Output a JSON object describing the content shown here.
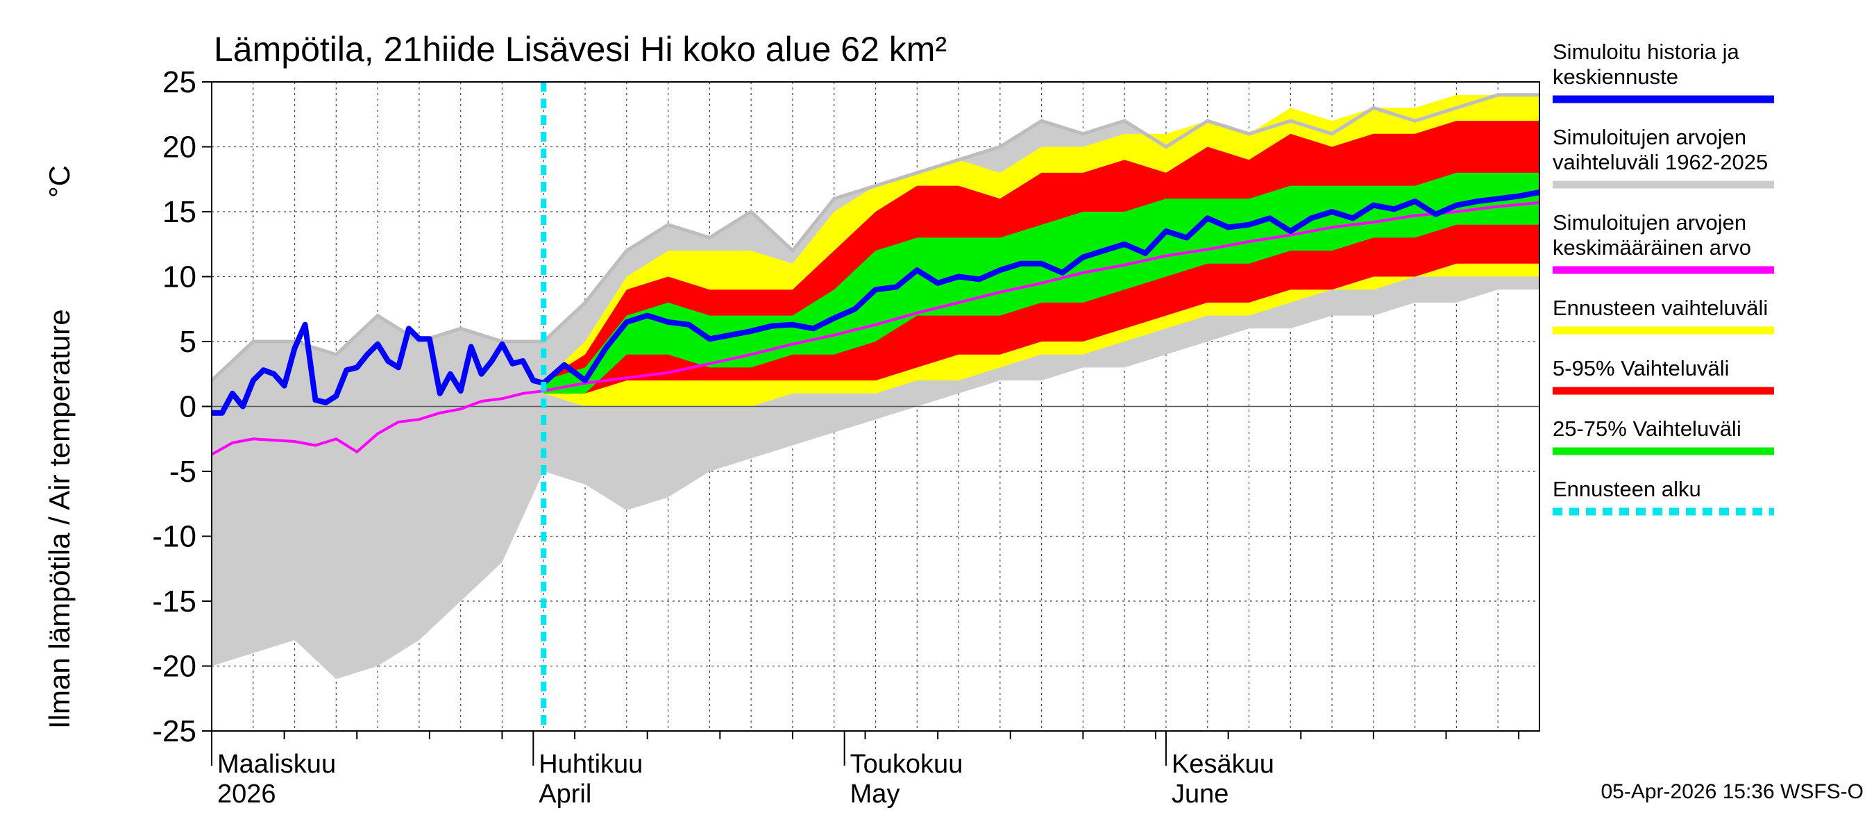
{
  "chart_data": {
    "type": "area",
    "title": "Lämpötila, 21hiide Lisävesi Hi koko alue 62 km²",
    "ylabel": "Ilman lämpötila / Air temperature",
    "yunit": "°C",
    "ylim": [
      -25,
      25
    ],
    "yticks": [
      25,
      20,
      15,
      10,
      5,
      0,
      -5,
      -10,
      -15,
      -20,
      -25
    ],
    "x_range_days": [
      0,
      128
    ],
    "forecast_start_day": 32,
    "months": [
      {
        "day": 0,
        "fi": "Maaliskuu",
        "en": "2026"
      },
      {
        "day": 31,
        "fi": "Huhtikuu",
        "en": "April"
      },
      {
        "day": 61,
        "fi": "Toukokuu",
        "en": "May"
      },
      {
        "day": 92,
        "fi": "Kesäkuu",
        "en": "June"
      }
    ],
    "series": {
      "history_range": {
        "name": "Simuloitujen arvojen vaihteluväli 1962-2025",
        "x": [
          0,
          4,
          8,
          12,
          16,
          20,
          24,
          28,
          32,
          36,
          40,
          44,
          48,
          52,
          56,
          60,
          64,
          68,
          72,
          76,
          80,
          84,
          88,
          92,
          96,
          100,
          104,
          108,
          112,
          116,
          120,
          124,
          128
        ],
        "upper": [
          2,
          5,
          5,
          4,
          7,
          5,
          6,
          5,
          5,
          8,
          12,
          14,
          13,
          15,
          12,
          16,
          17,
          18,
          19,
          20,
          22,
          21,
          22,
          20,
          22,
          21,
          22,
          21,
          23,
          22,
          23,
          24,
          24
        ],
        "lower": [
          -20,
          -19,
          -18,
          -21,
          -20,
          -18,
          -15,
          -12,
          -5,
          -6,
          -8,
          -7,
          -5,
          -4,
          -3,
          -2,
          -1,
          0,
          1,
          2,
          2,
          3,
          3,
          4,
          5,
          6,
          6,
          7,
          7,
          8,
          8,
          9,
          9
        ]
      },
      "forecast_range": {
        "name": "Ennusteen vaihteluväli",
        "x": [
          32,
          36,
          40,
          44,
          48,
          52,
          56,
          60,
          64,
          68,
          72,
          76,
          80,
          84,
          88,
          92,
          96,
          100,
          104,
          108,
          112,
          116,
          120,
          124,
          128
        ],
        "upper": [
          2,
          5,
          10,
          12,
          12,
          12,
          11,
          15,
          17,
          18,
          19,
          18,
          20,
          20,
          21,
          21,
          22,
          21,
          23,
          22,
          23,
          23,
          24,
          24,
          24
        ],
        "lower": [
          1,
          0,
          0,
          0,
          0,
          0,
          1,
          1,
          1,
          2,
          2,
          3,
          4,
          4,
          5,
          6,
          7,
          7,
          8,
          9,
          9,
          10,
          10,
          10,
          10
        ]
      },
      "p5_95": {
        "name": "5-95% Vaihteluväli",
        "x": [
          32,
          36,
          40,
          44,
          48,
          52,
          56,
          60,
          64,
          68,
          72,
          76,
          80,
          84,
          88,
          92,
          96,
          100,
          104,
          108,
          112,
          116,
          120,
          124,
          128
        ],
        "upper": [
          2,
          4,
          9,
          10,
          9,
          9,
          9,
          12,
          15,
          17,
          17,
          16,
          18,
          18,
          19,
          18,
          20,
          19,
          21,
          20,
          21,
          21,
          22,
          22,
          22
        ],
        "lower": [
          1,
          1,
          2,
          2,
          2,
          2,
          2,
          2,
          2,
          3,
          4,
          4,
          5,
          5,
          6,
          7,
          8,
          8,
          9,
          9,
          10,
          10,
          11,
          11,
          11
        ]
      },
      "p25_75": {
        "name": "25-75% Vaihteluväli",
        "x": [
          32,
          36,
          40,
          44,
          48,
          52,
          56,
          60,
          64,
          68,
          72,
          76,
          80,
          84,
          88,
          92,
          96,
          100,
          104,
          108,
          112,
          116,
          120,
          124,
          128
        ],
        "upper": [
          2,
          3,
          7,
          8,
          7,
          7,
          7,
          9,
          12,
          13,
          13,
          13,
          14,
          15,
          15,
          16,
          16,
          16,
          17,
          17,
          17,
          17,
          18,
          18,
          18
        ],
        "lower": [
          1,
          1,
          4,
          4,
          3,
          3,
          4,
          4,
          5,
          7,
          7,
          7,
          8,
          8,
          9,
          10,
          11,
          11,
          12,
          12,
          13,
          13,
          14,
          14,
          14
        ]
      },
      "mean": {
        "name": "Simuloitujen arvojen keskimääräinen arvo",
        "x": [
          0,
          2,
          4,
          6,
          8,
          10,
          12,
          14,
          16,
          18,
          20,
          22,
          24,
          26,
          28,
          30,
          32,
          36,
          40,
          44,
          48,
          52,
          56,
          60,
          64,
          68,
          72,
          76,
          80,
          84,
          88,
          92,
          96,
          100,
          104,
          108,
          112,
          116,
          120,
          124,
          128
        ],
        "values": [
          -3.7,
          -2.8,
          -2.5,
          -2.6,
          -2.7,
          -3.0,
          -2.5,
          -3.5,
          -2.1,
          -1.2,
          -1.0,
          -0.5,
          -0.2,
          0.4,
          0.6,
          1.0,
          1.2,
          1.8,
          2.2,
          2.6,
          3.3,
          4.0,
          4.8,
          5.5,
          6.3,
          7.2,
          8.0,
          8.8,
          9.5,
          10.3,
          10.9,
          11.6,
          12.1,
          12.7,
          13.2,
          13.8,
          14.2,
          14.7,
          15.0,
          15.4,
          15.7
        ]
      },
      "history_and_median": {
        "name": "Simuloitu historia ja keskiennuste",
        "x": [
          0,
          1,
          2,
          3,
          4,
          5,
          6,
          7,
          8,
          9,
          10,
          11,
          12,
          13,
          14,
          15,
          16,
          17,
          18,
          19,
          20,
          21,
          22,
          23,
          24,
          25,
          26,
          27,
          28,
          29,
          30,
          31,
          32,
          34,
          36,
          38,
          40,
          42,
          44,
          46,
          48,
          50,
          52,
          54,
          56,
          58,
          60,
          62,
          64,
          66,
          68,
          70,
          72,
          74,
          76,
          78,
          80,
          82,
          84,
          86,
          88,
          90,
          92,
          94,
          96,
          98,
          100,
          102,
          104,
          106,
          108,
          110,
          112,
          114,
          116,
          118,
          120,
          122,
          124,
          126,
          128
        ],
        "values": [
          -0.5,
          -0.5,
          1.0,
          0.0,
          2.0,
          2.8,
          2.5,
          1.6,
          4.5,
          6.3,
          0.5,
          0.3,
          0.8,
          2.8,
          3.0,
          4.0,
          4.8,
          3.5,
          3.0,
          6.0,
          5.2,
          5.2,
          1.0,
          2.5,
          1.2,
          4.6,
          2.5,
          3.5,
          4.8,
          3.3,
          3.5,
          2.0,
          1.8,
          3.2,
          2.0,
          4.5,
          6.5,
          7.0,
          6.5,
          6.3,
          5.2,
          5.5,
          5.8,
          6.2,
          6.3,
          6.0,
          6.8,
          7.5,
          9.0,
          9.2,
          10.5,
          9.5,
          10.0,
          9.8,
          10.5,
          11.0,
          11.0,
          10.3,
          11.5,
          12.0,
          12.5,
          11.8,
          13.5,
          13.0,
          14.5,
          13.8,
          14.0,
          14.5,
          13.5,
          14.5,
          15.0,
          14.5,
          15.5,
          15.2,
          15.8,
          14.8,
          15.5,
          15.8,
          16.0,
          16.2,
          16.5
        ]
      }
    },
    "legend": [
      {
        "label_lines": [
          "Simuloitu historia ja",
          "keskiennuste"
        ],
        "color": "#0000ff",
        "style": "solid"
      },
      {
        "label_lines": [
          "Simuloitujen arvojen",
          "vaihteluväli 1962-2025"
        ],
        "color": "#cccccc",
        "style": "solid"
      },
      {
        "label_lines": [
          "Simuloitujen arvojen",
          "keskimääräinen arvo"
        ],
        "color": "#ff00ff",
        "style": "solid"
      },
      {
        "label_lines": [
          "Ennusteen vaihteluväli"
        ],
        "color": "#ffff00",
        "style": "solid"
      },
      {
        "label_lines": [
          "5-95% Vaihteluväli"
        ],
        "color": "#ff0000",
        "style": "solid"
      },
      {
        "label_lines": [
          "25-75% Vaihteluväli"
        ],
        "color": "#00ee00",
        "style": "solid"
      },
      {
        "label_lines": [
          "Ennusteen alku"
        ],
        "color": "#00e5ee",
        "style": "dashed"
      }
    ],
    "colors": {
      "history_range": "#cccccc",
      "forecast_range": "#ffff00",
      "p5_95": "#ff0000",
      "p25_75": "#00ee00",
      "mean": "#ff00ff",
      "median": "#0000ff",
      "forecast_start": "#00e5ee"
    },
    "footer": "05-Apr-2026 15:36 WSFS-O"
  }
}
